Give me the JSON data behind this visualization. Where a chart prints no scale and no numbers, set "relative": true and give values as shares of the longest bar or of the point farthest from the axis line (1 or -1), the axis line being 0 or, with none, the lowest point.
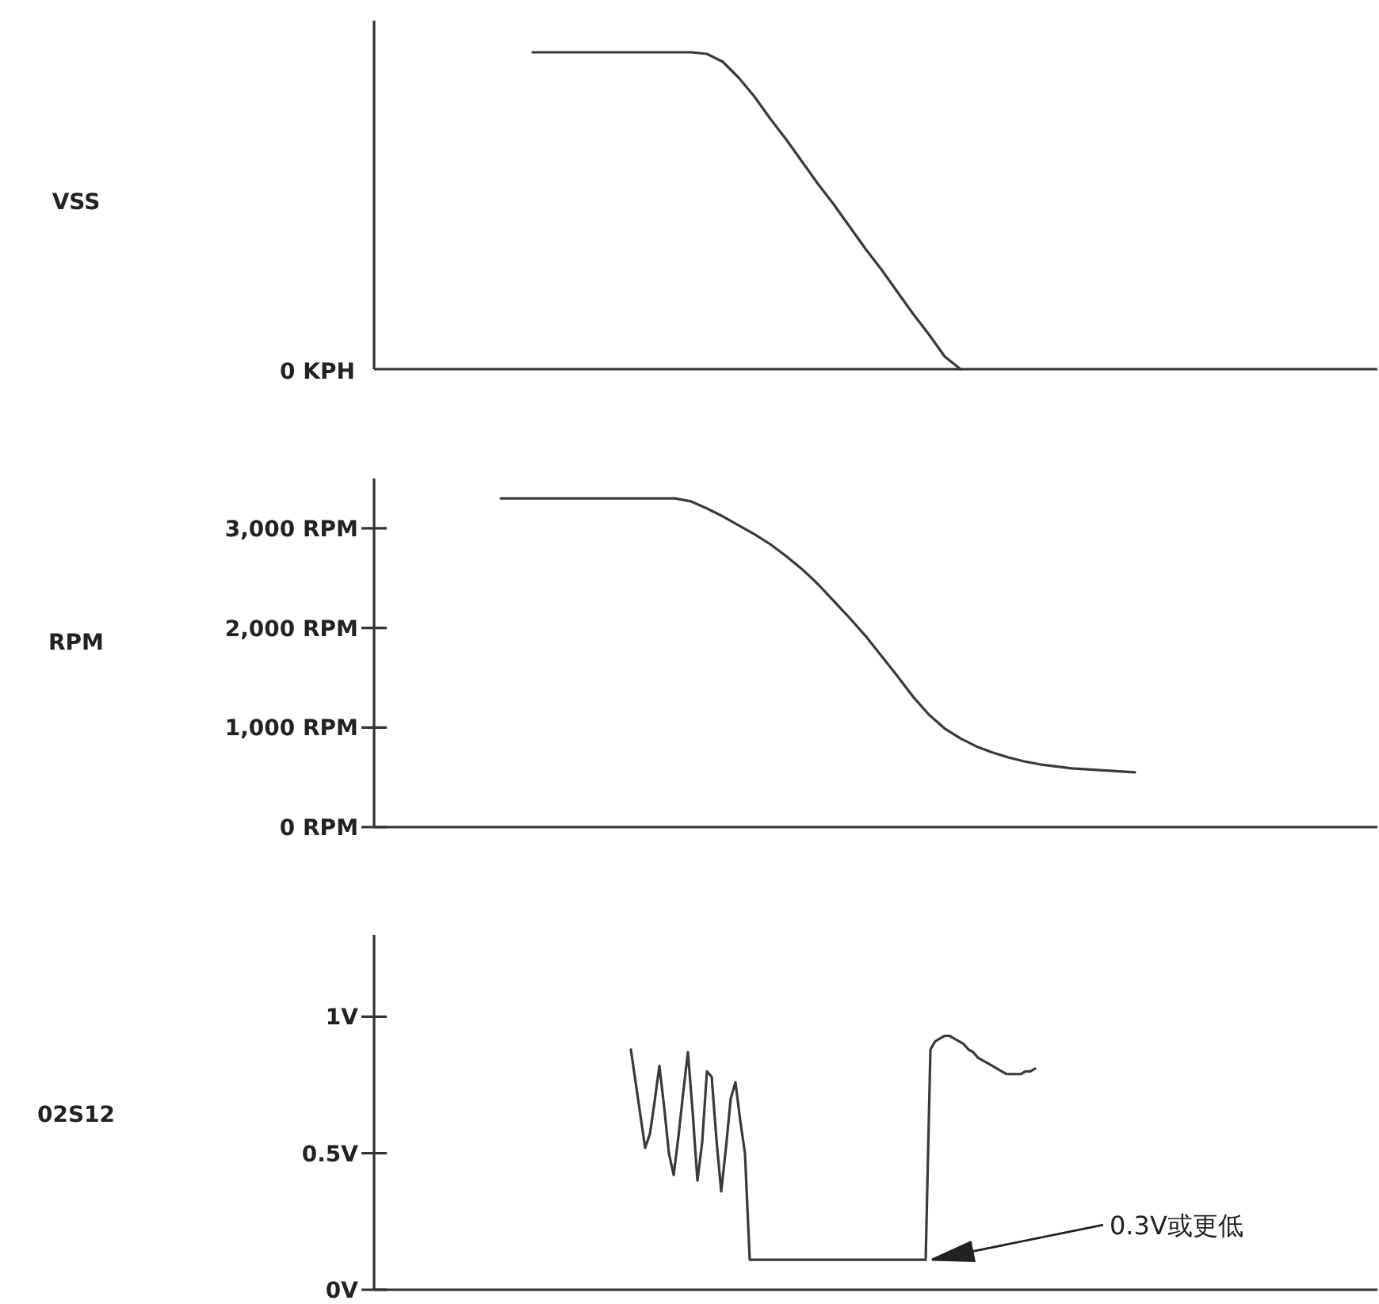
{
  "chart_data": [
    {
      "type": "line",
      "ylabel": "VSS",
      "relative": true,
      "color": "#3a3a3a",
      "annotations": [
        "0 KPH"
      ],
      "categories": [
        null,
        null,
        null,
        null,
        null,
        null,
        null,
        null,
        null,
        null,
        null,
        null,
        null,
        null,
        null,
        null,
        null,
        null,
        null,
        null,
        null,
        null,
        null,
        null,
        null,
        null,
        null,
        null,
        null,
        null,
        null,
        null,
        null,
        null,
        null,
        null,
        null,
        null,
        null,
        null,
        null,
        null,
        null,
        null,
        null,
        null,
        null,
        null,
        null,
        null,
        null,
        null,
        null,
        null,
        null,
        null,
        null,
        null,
        null,
        null,
        null,
        null,
        null,
        null
      ],
      "values": [
        null,
        null,
        null,
        null,
        null,
        null,
        null,
        null,
        null,
        null,
        1,
        1,
        1,
        1,
        1,
        1,
        1,
        1,
        1,
        1,
        1,
        0.995,
        0.97,
        0.92,
        0.86,
        0.79,
        0.725,
        0.655,
        0.585,
        0.52,
        0.45,
        0.38,
        0.315,
        0.245,
        0.175,
        0.11,
        0.04,
        0,
        null,
        null,
        null,
        null,
        null,
        null,
        null,
        null,
        null,
        null,
        null,
        null,
        null,
        null,
        null,
        null,
        null,
        null,
        null,
        null,
        null,
        null,
        null,
        null,
        null,
        null
      ]
    },
    {
      "type": "line",
      "ylabel": "RPM",
      "color": "#3a3a3a",
      "ylim": [
        0,
        3500
      ],
      "tick_labels": "y",
      "yticks": [
        {
          "value": 0,
          "label": "0 RPM"
        },
        {
          "value": 1000,
          "label": "1,000 RPM"
        },
        {
          "value": 2000,
          "label": "2,000 RPM"
        },
        {
          "value": 3000,
          "label": "3,000 RPM"
        }
      ],
      "categories": [
        null,
        null,
        null,
        null,
        null,
        null,
        null,
        null,
        null,
        null,
        null,
        null,
        null,
        null,
        null,
        null,
        null,
        null,
        null,
        null,
        null,
        null,
        null,
        null,
        null,
        null,
        null,
        null,
        null,
        null,
        null,
        null,
        null,
        null,
        null,
        null,
        null,
        null,
        null,
        null,
        null,
        null,
        null,
        null,
        null,
        null,
        null,
        null,
        null,
        null,
        null,
        null,
        null,
        null,
        null,
        null,
        null,
        null,
        null,
        null,
        null,
        null,
        null,
        null
      ],
      "values": [
        null,
        null,
        null,
        null,
        null,
        null,
        null,
        null,
        3300,
        3300,
        3300,
        3300,
        3300,
        3300,
        3300,
        3300,
        3300,
        3300,
        3300,
        3300,
        3270,
        3200,
        3120,
        3030,
        2940,
        2840,
        2720,
        2590,
        2440,
        2270,
        2100,
        1920,
        1720,
        1520,
        1310,
        1130,
        990,
        890,
        810,
        750,
        700,
        660,
        630,
        610,
        590,
        580,
        570,
        560,
        550,
        null,
        null,
        null,
        null,
        null,
        null,
        null,
        null,
        null,
        null,
        null,
        null,
        null,
        null,
        null
      ]
    },
    {
      "type": "line",
      "ylabel": "02S12",
      "color": "#3a3a3a",
      "ylim": [
        0,
        1.3
      ],
      "tick_labels": "y",
      "yticks": [
        {
          "value": 0,
          "label": "0V"
        },
        {
          "value": 0.5,
          "label": "0.5V"
        },
        {
          "value": 1,
          "label": "1V"
        }
      ],
      "annotations": [
        "0.3V或更低"
      ],
      "categories": [
        null,
        null,
        null,
        null,
        null,
        null,
        null,
        null,
        null,
        null,
        null,
        null,
        null,
        null,
        null,
        null,
        null,
        null,
        null,
        null,
        null,
        null,
        null,
        null,
        null,
        null,
        null,
        null,
        null,
        null,
        null,
        null,
        null,
        null,
        null,
        null,
        null,
        null,
        null,
        null,
        null,
        null,
        null,
        null,
        null,
        null,
        null,
        null,
        null,
        null,
        null,
        null,
        null,
        null,
        null,
        null,
        null,
        null,
        null,
        null,
        null,
        null,
        null,
        null,
        null,
        null,
        null,
        null,
        null,
        null,
        null,
        null,
        null,
        null,
        null,
        null,
        null,
        null,
        null,
        null,
        null,
        null,
        null,
        null,
        null,
        null,
        null,
        null,
        null,
        null,
        null,
        null,
        null,
        null,
        null,
        null,
        null,
        null,
        null,
        null,
        null,
        null,
        null,
        null,
        null,
        null,
        null,
        null,
        null,
        null,
        null,
        null,
        null,
        null,
        null,
        null,
        null,
        null,
        null,
        null,
        null,
        null,
        null,
        null,
        null,
        null,
        null,
        null,
        null,
        null,
        null,
        null,
        null,
        null,
        null,
        null,
        null,
        null,
        null,
        null,
        null,
        null,
        null,
        null,
        null,
        null,
        null,
        null,
        null,
        null,
        null,
        null,
        null,
        null,
        null,
        null,
        null,
        null,
        null,
        null,
        null,
        null,
        null,
        null,
        null,
        null,
        null,
        null,
        null,
        null,
        null,
        null,
        null,
        null,
        null,
        null,
        null,
        null,
        null,
        null,
        null,
        null,
        null,
        null,
        null,
        null,
        null,
        null,
        null,
        null,
        null,
        null,
        null,
        null,
        null,
        null,
        null,
        null,
        null,
        null,
        null,
        null,
        null,
        null,
        null,
        null,
        null,
        null,
        null,
        null,
        null
      ],
      "values": [
        null,
        null,
        null,
        null,
        null,
        null,
        null,
        null,
        null,
        null,
        null,
        null,
        null,
        null,
        null,
        null,
        null,
        null,
        null,
        null,
        null,
        null,
        null,
        null,
        null,
        null,
        null,
        null,
        null,
        null,
        null,
        null,
        null,
        null,
        null,
        null,
        null,
        null,
        null,
        null,
        null,
        null,
        null,
        null,
        null,
        null,
        null,
        null,
        null,
        null,
        null,
        null,
        null,
        null,
        0.88,
        0.76,
        0.64,
        0.52,
        0.57,
        0.69,
        0.82,
        0.67,
        0.5,
        0.42,
        0.56,
        0.72,
        0.87,
        0.65,
        0.4,
        0.54,
        0.8,
        0.78,
        0.55,
        0.36,
        0.52,
        0.7,
        0.76,
        0.62,
        0.5,
        0.11,
        0.11,
        0.11,
        0.11,
        0.11,
        0.11,
        0.11,
        0.11,
        0.11,
        0.11,
        0.11,
        0.11,
        0.11,
        0.11,
        0.11,
        0.11,
        0.11,
        0.11,
        0.11,
        0.11,
        0.11,
        0.11,
        0.11,
        0.11,
        0.11,
        0.11,
        0.11,
        0.11,
        0.11,
        0.11,
        0.11,
        0.11,
        0.11,
        0.11,
        0.11,
        0.11,
        0.11,
        0.11,
        0.88,
        0.91,
        0.92,
        0.93,
        0.93,
        0.92,
        0.91,
        0.9,
        0.88,
        0.87,
        0.85,
        0.84,
        0.83,
        0.82,
        0.81,
        0.8,
        0.79,
        0.79,
        0.79,
        0.79,
        0.8,
        0.8,
        0.81,
        null,
        null,
        null,
        null,
        null,
        null,
        null,
        null,
        null,
        null,
        null,
        null,
        null,
        null,
        null,
        null,
        null,
        null,
        null,
        null,
        null,
        null,
        null,
        null,
        null,
        null,
        null,
        null,
        null,
        null,
        null,
        null,
        null,
        null,
        null,
        null,
        null,
        null,
        null,
        null,
        null,
        null,
        null,
        null,
        null,
        null,
        null,
        null,
        null,
        null,
        null,
        null,
        null,
        null,
        null,
        null,
        null,
        null,
        null,
        null,
        null,
        null,
        null,
        null,
        null,
        null,
        null,
        null,
        null,
        null,
        null
      ]
    }
  ]
}
